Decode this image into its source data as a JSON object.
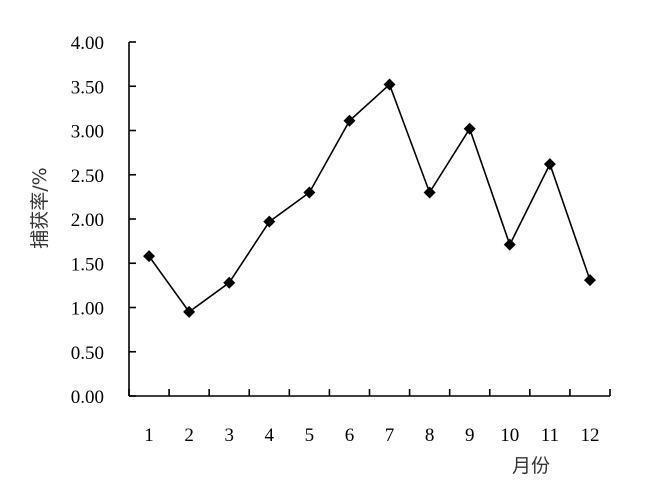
{
  "chart_data": {
    "type": "line",
    "title": "",
    "xlabel": "月份",
    "ylabel": "捕获率/%",
    "categories": [
      "1",
      "2",
      "3",
      "4",
      "5",
      "6",
      "7",
      "8",
      "9",
      "10",
      "11",
      "12"
    ],
    "series": [
      {
        "name": "",
        "values": [
          1.58,
          0.95,
          1.28,
          1.97,
          2.3,
          3.11,
          3.52,
          2.3,
          3.02,
          1.71,
          2.62,
          1.31
        ]
      }
    ],
    "yticks": [
      "0.00",
      "0.50",
      "1.00",
      "1.50",
      "2.00",
      "2.50",
      "3.00",
      "3.50",
      "4.00"
    ],
    "ylim": [
      0,
      4
    ],
    "grid": false,
    "legend": "none",
    "marker": "diamond",
    "line_color": "#000000"
  }
}
